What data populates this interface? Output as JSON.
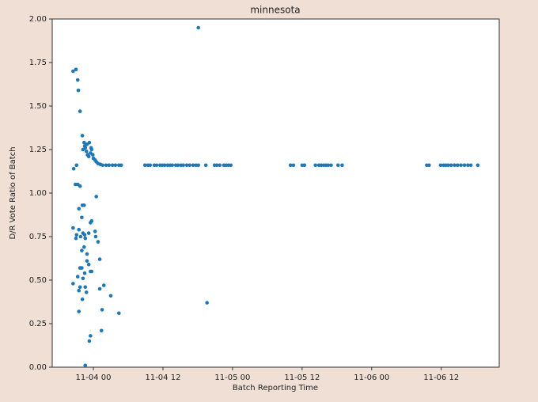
{
  "chart_data": {
    "type": "scatter",
    "title": "minnesota",
    "x_label": "Batch Reporting Time",
    "y_label": "D/R Vote Ratio of Batch",
    "color": "#1f77b4",
    "xlim": [
      -7.1,
      70
    ],
    "ylim": [
      0,
      2
    ],
    "xticks": [
      {
        "value": 0,
        "label": "11-04 00"
      },
      {
        "value": 12,
        "label": "11-04 12"
      },
      {
        "value": 24,
        "label": "11-05 00"
      },
      {
        "value": 36,
        "label": "11-05 12"
      },
      {
        "value": 48,
        "label": "11-06 00"
      },
      {
        "value": 60,
        "label": "11-06 12"
      }
    ],
    "yticks": [
      {
        "value": 0,
        "label": "0.00"
      },
      {
        "value": 0.25,
        "label": "0.25"
      },
      {
        "value": 0.5,
        "label": "0.50"
      },
      {
        "value": 0.75,
        "label": "0.75"
      },
      {
        "value": 1,
        "label": "1.00"
      },
      {
        "value": 1.25,
        "label": "1.25"
      },
      {
        "value": 1.5,
        "label": "1.50"
      },
      {
        "value": 1.75,
        "label": "1.75"
      },
      {
        "value": 2,
        "label": "2.00"
      }
    ],
    "x": [
      -3.5,
      -3.0,
      -2.7,
      -2.6,
      -2.3,
      -3.4,
      -2.9,
      -3.1,
      -2.7,
      -2.3,
      -1.9,
      -1.6,
      -2.5,
      -2.0,
      -3.5,
      -2.9,
      -3.0,
      -2.5,
      -2.2,
      -1.8,
      -1.5,
      -1.4,
      -2.0,
      -1.6,
      -2.3,
      -2.0,
      -1.5,
      -1.1,
      -0.8,
      -2.7,
      -3.5,
      -2.3,
      -2.5,
      -1.8,
      -1.4,
      -1.9,
      -2.5,
      -1.4,
      -0.7,
      -0.5,
      -0.5,
      -0.3,
      -0.3,
      -0.5,
      -0.8,
      -1.1,
      -1.2,
      0.3,
      0.4,
      0.5,
      0.8,
      1.1,
      1.8,
      1.5,
      1.4,
      3.0,
      4.4,
      1.1,
      -1.9,
      -1.6,
      -1.8,
      -1.5,
      -1.4,
      -1.2,
      -1.1,
      -1.0,
      -0.8,
      -0.7,
      -0.5,
      -0.4,
      -0.3,
      -0.1,
      0,
      0.3,
      0.5,
      0.8,
      1.2,
      1.6,
      2.2,
      2.7,
      3.3,
      3.8,
      4.4,
      4.8,
      8.9,
      9.4,
      9.8,
      10.5,
      10.9,
      11.5,
      11.9,
      12.3,
      12.8,
      13.2,
      13.6,
      14.2,
      14.6,
      15.1,
      15.5,
      16.1,
      16.6,
      17.2,
      17.7,
      18.1,
      19.4,
      20.9,
      21.3,
      21.8,
      22.5,
      22.9,
      23.3,
      23.7,
      34.0,
      34.5,
      36.0,
      36.4,
      38.3,
      38.9,
      39.3,
      39.7,
      40.1,
      40.5,
      41.0,
      42.2,
      42.9,
      57.5,
      57.9,
      59.9,
      60.4,
      60.8,
      61.2,
      61.7,
      62.3,
      62.8,
      63.4,
      64.0,
      64.6,
      65.1,
      66.3,
      18.1,
      19.6
    ],
    "values": [
      1.7,
      1.71,
      1.65,
      1.59,
      1.47,
      1.14,
      1.16,
      1.05,
      1.05,
      1.04,
      0.93,
      0.93,
      0.91,
      0.86,
      0.8,
      0.76,
      0.74,
      0.79,
      0.75,
      0.77,
      0.76,
      0.74,
      0.67,
      0.69,
      0.57,
      0.57,
      0.54,
      0.61,
      0.59,
      0.52,
      0.48,
      0.46,
      0.44,
      0.51,
      0.46,
      0.39,
      0.32,
      0.01,
      0.15,
      0.18,
      0.55,
      0.55,
      0.84,
      0.83,
      0.77,
      0.65,
      0.43,
      0.78,
      0.75,
      0.98,
      0.72,
      0.62,
      0.47,
      0.33,
      0.21,
      0.41,
      0.31,
      0.45,
      1.33,
      1.29,
      1.25,
      1.27,
      1.26,
      1.24,
      1.28,
      1.22,
      1.21,
      1.29,
      1.23,
      1.26,
      1.25,
      1.22,
      1.2,
      1.19,
      1.18,
      1.17,
      1.165,
      1.16,
      1.16,
      1.16,
      1.16,
      1.16,
      1.16,
      1.16,
      1.16,
      1.16,
      1.16,
      1.16,
      1.16,
      1.16,
      1.16,
      1.16,
      1.16,
      1.16,
      1.16,
      1.16,
      1.16,
      1.16,
      1.16,
      1.16,
      1.16,
      1.16,
      1.16,
      1.16,
      1.16,
      1.16,
      1.16,
      1.16,
      1.16,
      1.16,
      1.16,
      1.16,
      1.16,
      1.16,
      1.16,
      1.16,
      1.16,
      1.16,
      1.16,
      1.16,
      1.16,
      1.16,
      1.16,
      1.16,
      1.16,
      1.16,
      1.16,
      1.16,
      1.16,
      1.16,
      1.16,
      1.16,
      1.16,
      1.16,
      1.16,
      1.16,
      1.16,
      1.16,
      1.16,
      1.95,
      0.37
    ]
  }
}
